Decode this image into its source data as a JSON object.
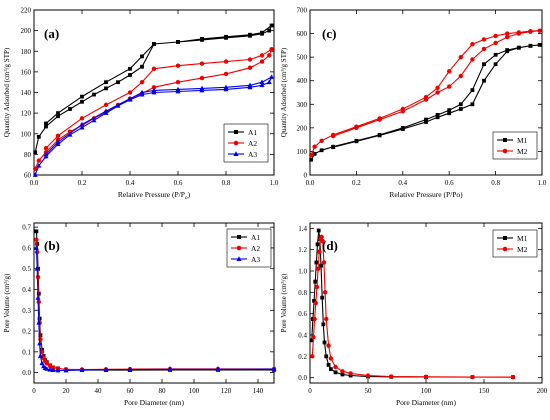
{
  "chart_data": [
    {
      "panel": "(a)",
      "type": "line",
      "xlabel": "Relative Pressure (P/P",
      "xlabel_sub": "o",
      "xlabel_end": ")",
      "ylabel": "Quantity Adsorbed (cm³/g STP)",
      "xlim": [
        0,
        1.0
      ],
      "ylim": [
        60,
        220
      ],
      "xticks": [
        0.0,
        0.2,
        0.4,
        0.6,
        0.8,
        1.0
      ],
      "yticks": [
        60,
        80,
        100,
        120,
        140,
        160,
        180,
        200,
        220
      ],
      "legend_position": "bottom-right",
      "series": [
        {
          "name": "A1",
          "color": "#000000",
          "marker": "square",
          "x": [
            0.005,
            0.02,
            0.05,
            0.1,
            0.15,
            0.2,
            0.25,
            0.3,
            0.35,
            0.4,
            0.45,
            0.5,
            0.6,
            0.7,
            0.8,
            0.9,
            0.95,
            0.98,
            0.99,
            0.95,
            0.9,
            0.8,
            0.7,
            0.6,
            0.5,
            0.45,
            0.4,
            0.3,
            0.2,
            0.1,
            0.05
          ],
          "y": [
            82,
            97,
            107,
            117,
            124,
            131,
            138,
            144,
            150,
            157,
            165,
            187,
            189,
            191,
            193,
            195,
            197,
            200,
            205,
            198,
            196,
            194,
            192,
            189,
            187,
            175,
            163,
            150,
            136,
            120,
            110
          ]
        },
        {
          "name": "A2",
          "color": "#ee0000",
          "marker": "circle",
          "x": [
            0.005,
            0.02,
            0.05,
            0.1,
            0.15,
            0.2,
            0.25,
            0.3,
            0.35,
            0.4,
            0.45,
            0.5,
            0.6,
            0.7,
            0.8,
            0.9,
            0.95,
            0.98,
            0.99,
            0.95,
            0.9,
            0.8,
            0.7,
            0.6,
            0.5,
            0.45,
            0.4,
            0.3,
            0.2,
            0.1,
            0.05
          ],
          "y": [
            66,
            74,
            82,
            94,
            102,
            108,
            115,
            121,
            128,
            134,
            139,
            145,
            150,
            154,
            158,
            164,
            170,
            176,
            182,
            176,
            172,
            170,
            168,
            166,
            163,
            150,
            140,
            128,
            115,
            98,
            86
          ]
        },
        {
          "name": "A3",
          "color": "#0000ee",
          "marker": "triangle",
          "x": [
            0.005,
            0.02,
            0.05,
            0.1,
            0.15,
            0.2,
            0.25,
            0.3,
            0.35,
            0.4,
            0.45,
            0.5,
            0.6,
            0.7,
            0.8,
            0.9,
            0.95,
            0.98,
            0.99,
            0.95,
            0.9,
            0.8,
            0.7,
            0.6,
            0.5,
            0.45,
            0.4,
            0.3,
            0.2,
            0.1,
            0.05
          ],
          "y": [
            60,
            69,
            78,
            90,
            99,
            106,
            113,
            120,
            127,
            133,
            138,
            140,
            141,
            142,
            143,
            145,
            147,
            150,
            155,
            150,
            147,
            145,
            144,
            143,
            142,
            140,
            134,
            122,
            109,
            92,
            80
          ]
        }
      ]
    },
    {
      "panel": "(c)",
      "type": "line",
      "xlabel": "Relative Pressure (P/Po)",
      "ylabel": "Quantity Adsorbed (cm³/g STP)",
      "xlim": [
        0,
        1.0
      ],
      "ylim": [
        0,
        700
      ],
      "xticks": [
        0.0,
        0.2,
        0.4,
        0.6,
        0.8,
        1.0
      ],
      "yticks": [
        0,
        100,
        200,
        300,
        400,
        500,
        600,
        700
      ],
      "legend_position": "bottom-right",
      "series": [
        {
          "name": "M1",
          "color": "#000000",
          "marker": "square",
          "x": [
            0.005,
            0.02,
            0.05,
            0.1,
            0.2,
            0.3,
            0.4,
            0.5,
            0.55,
            0.6,
            0.65,
            0.7,
            0.75,
            0.8,
            0.85,
            0.9,
            0.95,
            0.99,
            0.95,
            0.9,
            0.85,
            0.8,
            0.75,
            0.7,
            0.65,
            0.6,
            0.55,
            0.5,
            0.4,
            0.3,
            0.2,
            0.1
          ],
          "y": [
            65,
            90,
            105,
            120,
            145,
            170,
            200,
            235,
            255,
            275,
            300,
            360,
            470,
            510,
            530,
            540,
            548,
            552,
            548,
            540,
            525,
            470,
            400,
            300,
            280,
            262,
            245,
            225,
            195,
            168,
            143,
            118
          ]
        },
        {
          "name": "M2",
          "color": "#ee0000",
          "marker": "circle",
          "x": [
            0.005,
            0.02,
            0.05,
            0.1,
            0.2,
            0.3,
            0.4,
            0.5,
            0.55,
            0.6,
            0.65,
            0.7,
            0.75,
            0.8,
            0.85,
            0.9,
            0.95,
            0.99,
            0.95,
            0.9,
            0.85,
            0.8,
            0.75,
            0.7,
            0.65,
            0.6,
            0.55,
            0.5,
            0.4,
            0.3,
            0.2,
            0.1
          ],
          "y": [
            85,
            120,
            145,
            170,
            205,
            240,
            280,
            330,
            370,
            440,
            500,
            555,
            575,
            590,
            600,
            605,
            610,
            612,
            608,
            600,
            585,
            560,
            535,
            490,
            420,
            375,
            350,
            320,
            270,
            235,
            200,
            165
          ]
        }
      ]
    },
    {
      "panel": "(b)",
      "type": "line",
      "xlabel": "Pore Diameter (nm)",
      "ylabel": "Pore Volume (cm³/g)",
      "xlim": [
        0,
        150
      ],
      "ylim": [
        -0.05,
        0.72
      ],
      "xticks": [
        0,
        20,
        40,
        60,
        80,
        100,
        120,
        140
      ],
      "yticks": [
        0.0,
        0.1,
        0.2,
        0.3,
        0.4,
        0.5,
        0.6,
        0.7
      ],
      "legend_position": "top-right",
      "series": [
        {
          "name": "A1",
          "color": "#000000",
          "marker": "square",
          "x": [
            1.5,
            2,
            2.5,
            3,
            3.5,
            4,
            5,
            6,
            7,
            8,
            10,
            12,
            15,
            20,
            30,
            45,
            60,
            85,
            115,
            150
          ],
          "y": [
            0.68,
            0.62,
            0.5,
            0.38,
            0.26,
            0.18,
            0.11,
            0.08,
            0.06,
            0.05,
            0.035,
            0.025,
            0.02,
            0.015,
            0.012,
            0.012,
            0.012,
            0.013,
            0.013,
            0.013
          ]
        },
        {
          "name": "A2",
          "color": "#ee0000",
          "marker": "circle",
          "x": [
            1.5,
            2,
            2.5,
            3,
            3.5,
            4,
            5,
            6,
            7,
            8,
            10,
            12,
            15,
            20,
            30,
            45,
            60,
            85,
            115,
            150
          ],
          "y": [
            0.64,
            0.58,
            0.46,
            0.34,
            0.24,
            0.16,
            0.1,
            0.07,
            0.055,
            0.045,
            0.032,
            0.024,
            0.02,
            0.016,
            0.015,
            0.016,
            0.017,
            0.018,
            0.018,
            0.018
          ]
        },
        {
          "name": "A3",
          "color": "#0000ee",
          "marker": "triangle",
          "x": [
            1.5,
            2,
            2.5,
            3,
            3.5,
            4,
            5,
            6,
            7,
            8,
            10,
            12,
            15,
            20,
            30,
            45,
            60,
            85,
            115,
            150
          ],
          "y": [
            0.6,
            0.5,
            0.36,
            0.24,
            0.14,
            0.08,
            0.045,
            0.03,
            0.022,
            0.018,
            0.014,
            0.012,
            0.01,
            0.01,
            0.012,
            0.014,
            0.015,
            0.016,
            0.016,
            0.017
          ]
        }
      ]
    },
    {
      "panel": "(d)",
      "type": "line",
      "xlabel": "Pore Diameter (nm)",
      "ylabel": "Pore Volume (cm³/g)",
      "xlim": [
        0,
        200
      ],
      "ylim": [
        -0.05,
        1.45
      ],
      "xticks": [
        0,
        50,
        100,
        150,
        200
      ],
      "yticks": [
        0.0,
        0.2,
        0.4,
        0.6,
        0.8,
        1.0,
        1.2,
        1.4
      ],
      "legend_position": "top-right",
      "series": [
        {
          "name": "M1",
          "color": "#000000",
          "marker": "square",
          "x": [
            1.5,
            2.5,
            3.5,
            4.5,
            5.5,
            6.5,
            7.5,
            8.5,
            9.5,
            10.5,
            11.5,
            12.5,
            14,
            16,
            18,
            22,
            28,
            35,
            50,
            70,
            100,
            140,
            175
          ],
          "y": [
            0.35,
            0.55,
            0.72,
            0.9,
            1.08,
            1.25,
            1.38,
            1.3,
            1.05,
            0.75,
            0.5,
            0.33,
            0.2,
            0.12,
            0.08,
            0.05,
            0.03,
            0.02,
            0.01,
            0.008,
            0.006,
            0.005,
            0.005
          ]
        },
        {
          "name": "M2",
          "color": "#ee0000",
          "marker": "circle",
          "x": [
            2,
            3,
            4,
            5,
            6,
            7,
            8,
            9,
            10,
            11,
            12,
            13,
            14,
            16,
            18,
            22,
            28,
            35,
            50,
            70,
            100,
            140,
            175
          ],
          "y": [
            0.2,
            0.38,
            0.55,
            0.7,
            0.85,
            1.02,
            1.18,
            1.3,
            1.32,
            1.28,
            1.08,
            0.8,
            0.55,
            0.3,
            0.18,
            0.1,
            0.06,
            0.04,
            0.02,
            0.01,
            0.008,
            0.006,
            0.005
          ]
        }
      ]
    }
  ]
}
